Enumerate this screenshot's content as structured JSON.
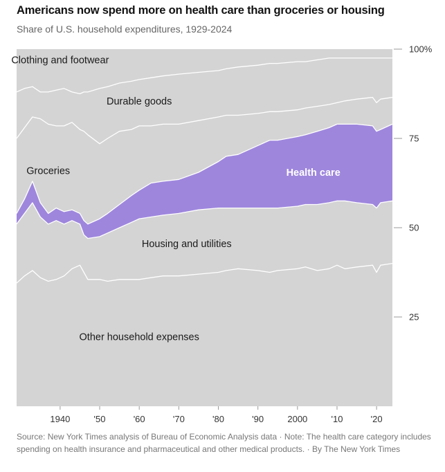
{
  "title": "Americans now spend more on health care than groceries or housing",
  "subtitle": "Share of U.S. household expenditures, 1929-2024",
  "footer": {
    "source": "Source: New York Times analysis of Bureau of Economic Analysis data",
    "note": "Note: The health care category includes spending on health insurance and pharmaceutical and other medical products.",
    "credit": "By The New York Times",
    "separator": "·"
  },
  "colors": {
    "area": "#d4d4d4",
    "health_care": "#9e86dd",
    "boundary": "#ffffff",
    "tick": "#999999"
  },
  "chart_data": {
    "type": "area",
    "stacked": true,
    "units": "percent of household expenditures",
    "xlim": [
      1929,
      2024
    ],
    "ylim": [
      0,
      100
    ],
    "x_ticks": [
      {
        "value": 1940,
        "label": "1940"
      },
      {
        "value": 1950,
        "label": "'50"
      },
      {
        "value": 1960,
        "label": "'60"
      },
      {
        "value": 1970,
        "label": "'70"
      },
      {
        "value": 1980,
        "label": "'80"
      },
      {
        "value": 1990,
        "label": "'90"
      },
      {
        "value": 2000,
        "label": "2000"
      },
      {
        "value": 2010,
        "label": "'10"
      },
      {
        "value": 2020,
        "label": "'20"
      }
    ],
    "y_ticks": [
      {
        "value": 25,
        "label": "25"
      },
      {
        "value": 50,
        "label": "50"
      },
      {
        "value": 75,
        "label": "75"
      },
      {
        "value": 100,
        "label": "100%"
      }
    ],
    "x": [
      1929,
      1931,
      1933,
      1935,
      1937,
      1939,
      1941,
      1943,
      1945,
      1946,
      1947,
      1950,
      1952,
      1955,
      1958,
      1960,
      1963,
      1966,
      1970,
      1975,
      1980,
      1982,
      1985,
      1990,
      1993,
      1995,
      2000,
      2002,
      2005,
      2008,
      2010,
      2012,
      2015,
      2019,
      2020,
      2021,
      2024
    ],
    "boundaries": [
      {
        "name": "Other household expenses",
        "label_pos": [
          1960,
          19.5
        ],
        "top": [
          34.5,
          36.5,
          38,
          36,
          35,
          35.5,
          36.5,
          38.5,
          39.5,
          37.5,
          35.5,
          35.5,
          35,
          35.5,
          35.5,
          35.5,
          36,
          36.5,
          36.5,
          37,
          37.5,
          38,
          38.5,
          38,
          37.5,
          38,
          38.5,
          39,
          38,
          38.5,
          39.5,
          38.5,
          39,
          39.5,
          37.5,
          39.5,
          40
        ]
      },
      {
        "name": "Housing and utilities",
        "label_pos": [
          1972,
          45.5
        ],
        "top": [
          51,
          54,
          57,
          53,
          51,
          52,
          51,
          52,
          51,
          48,
          47,
          47.5,
          48.5,
          50,
          51.5,
          52.5,
          53,
          53.5,
          54,
          55,
          55.5,
          55.5,
          55.5,
          55.5,
          55.5,
          55.5,
          56,
          56.5,
          56.5,
          57,
          57.5,
          57.5,
          57,
          56.5,
          55.5,
          57,
          57.5
        ]
      },
      {
        "name": "Health care",
        "label_pos": [
          2004,
          65.5
        ],
        "highlight": true,
        "top": [
          54,
          58,
          63,
          57,
          54,
          55.5,
          54.5,
          55,
          54,
          52,
          51,
          52.5,
          54,
          56.5,
          59,
          60.5,
          62.5,
          63,
          63.5,
          65.5,
          68.5,
          70,
          70.5,
          73,
          74.5,
          74.5,
          75.5,
          76,
          77,
          78,
          79,
          79,
          79,
          78.5,
          77,
          77.5,
          79
        ]
      },
      {
        "name": "Groceries",
        "label_pos": [
          1937,
          66
        ],
        "top": [
          75,
          78,
          81,
          80.5,
          79,
          78.5,
          78.5,
          79.5,
          77.5,
          77,
          76,
          73.5,
          75,
          77,
          77.5,
          78.5,
          78.5,
          79,
          79,
          80,
          81,
          81.5,
          81.5,
          82,
          82.5,
          82.5,
          83,
          83.5,
          84,
          84.5,
          85,
          85.5,
          86,
          86.5,
          85,
          86,
          86.5
        ]
      },
      {
        "name": "Durable goods",
        "label_pos": [
          1960,
          85.5
        ],
        "top": [
          88,
          89,
          89.5,
          88,
          88,
          88.5,
          89,
          88,
          87.5,
          88,
          88,
          89,
          89.5,
          90.5,
          91,
          91.5,
          92,
          92.5,
          93,
          93.5,
          94,
          94.5,
          95,
          95.5,
          96,
          96,
          96.5,
          96.5,
          97,
          97.5,
          97.5,
          97.5,
          97.5,
          97.5,
          97.5,
          97.5,
          97.5
        ]
      },
      {
        "name": "Clothing and footwear",
        "label_pos": [
          1940,
          97
        ],
        "top": [
          100,
          100,
          100,
          100,
          100,
          100,
          100,
          100,
          100,
          100,
          100,
          100,
          100,
          100,
          100,
          100,
          100,
          100,
          100,
          100,
          100,
          100,
          100,
          100,
          100,
          100,
          100,
          100,
          100,
          100,
          100,
          100,
          100,
          100,
          100,
          100,
          100
        ]
      }
    ]
  }
}
